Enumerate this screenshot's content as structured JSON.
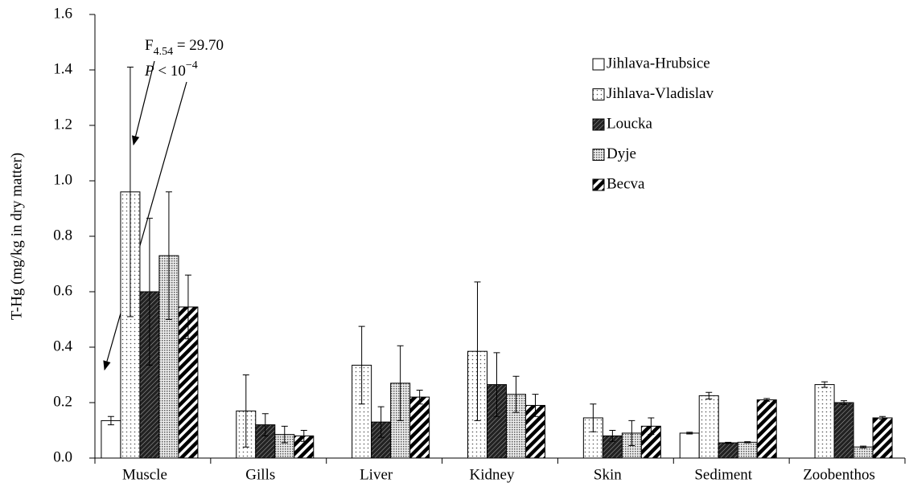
{
  "chart_data": {
    "type": "bar",
    "y_label": "T-Hg (mg/kg in dry matter)",
    "categories": [
      "Muscle",
      "Gills",
      "Liver",
      "Kidney",
      "Skin",
      "Sediment",
      "Zoobenthos"
    ],
    "series": [
      {
        "name": "Jihlava-Hrubsice",
        "color": "#ffffff",
        "pattern": "none",
        "values": [
          0.135,
          null,
          null,
          null,
          null,
          0.09,
          null
        ],
        "errors": [
          0.015,
          null,
          null,
          null,
          null,
          0.003,
          null
        ]
      },
      {
        "name": "Jihlava-Vladislav",
        "color": "#ffffff",
        "pattern": "dots",
        "values": [
          0.96,
          0.17,
          0.335,
          0.385,
          0.145,
          0.225,
          0.265
        ],
        "errors": [
          0.45,
          0.13,
          0.14,
          0.25,
          0.05,
          0.012,
          0.01
        ]
      },
      {
        "name": "Loucka",
        "color": "#333333",
        "pattern": "hatch",
        "values": [
          0.6,
          0.12,
          0.13,
          0.265,
          0.08,
          0.055,
          0.2
        ],
        "errors": [
          0.265,
          0.04,
          0.055,
          0.115,
          0.02,
          0.002,
          0.007
        ]
      },
      {
        "name": "Dyje",
        "color": "#555555",
        "pattern": "dense-dots",
        "values": [
          0.73,
          0.085,
          0.27,
          0.23,
          0.09,
          0.057,
          0.04
        ],
        "errors": [
          0.23,
          0.03,
          0.135,
          0.065,
          0.045,
          0.002,
          0.003
        ]
      },
      {
        "name": "Becva",
        "color": "#000000",
        "pattern": "stripes",
        "values": [
          0.545,
          0.08,
          0.22,
          0.19,
          0.115,
          0.21,
          0.145
        ],
        "errors": [
          0.115,
          0.02,
          0.025,
          0.04,
          0.03,
          0.005,
          0.005
        ]
      }
    ],
    "ylim": [
      0,
      1.6
    ],
    "yticks": [
      {
        "value": 0,
        "label": "0.0"
      },
      0.2,
      0.4,
      0.6,
      0.8,
      {
        "value": 1,
        "label": "1.0"
      },
      1.2,
      1.4,
      1.6
    ],
    "legend": "upper right",
    "annotation": {
      "f": "F",
      "f_sub": "4.54",
      "f_rest": " = 29.70",
      "p": "P",
      "p_rest": " < 10",
      "p_sup": "−4"
    }
  }
}
